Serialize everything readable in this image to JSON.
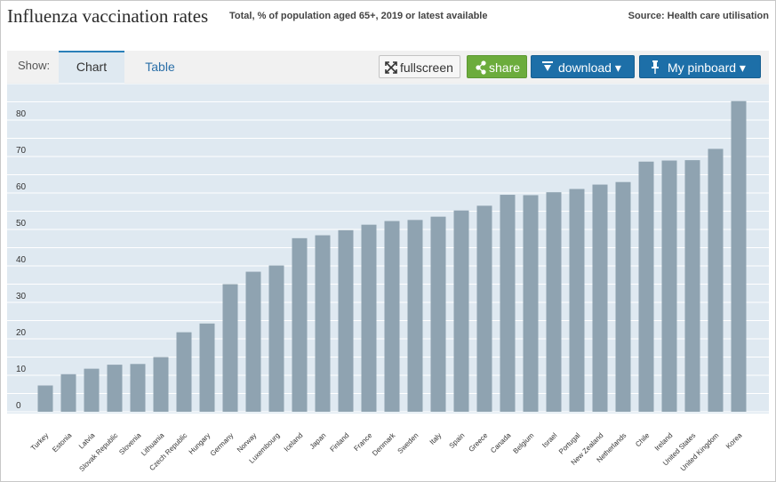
{
  "header": {
    "title": "Influenza vaccination rates",
    "subtitle": "Total, % of population aged 65+, 2019 or latest available",
    "source": "Source: Health care utilisation"
  },
  "toolbar": {
    "show_label": "Show:",
    "tabs": [
      {
        "label": "Chart",
        "active": true
      },
      {
        "label": "Table",
        "active": false
      }
    ],
    "fullscreen_label": "fullscreen",
    "share_label": "share",
    "download_label": "download ▾",
    "pinboard_label": "My pinboard ▾",
    "colors": {
      "share": "#6cac3c",
      "download": "#1d6fa8",
      "pinboard": "#1d6fa8"
    },
    "icons": {
      "fullscreen": "fullscreen-icon",
      "share": "share-icon",
      "download": "download-icon",
      "pinboard": "pin-icon"
    }
  },
  "chart_data": {
    "type": "bar",
    "title": "Influenza vaccination rates",
    "ylim": [
      0,
      90
    ],
    "yticks": [
      0,
      10,
      20,
      30,
      40,
      50,
      60,
      70,
      80
    ],
    "grid": true,
    "bar_color": "#8fa3b1",
    "plot_bg": "#dfe9f1",
    "categories": [
      "Turkey",
      "Estonia",
      "Latvia",
      "Slovak Republic",
      "Slovenia",
      "Lithuania",
      "Czech Republic",
      "Hungary",
      "Germany",
      "Norway",
      "Luxembourg",
      "Iceland",
      "Japan",
      "Finland",
      "France",
      "Denmark",
      "Sweden",
      "Italy",
      "Spain",
      "Greece",
      "Canada",
      "Belgium",
      "Israel",
      "Portugal",
      "New Zealand",
      "Netherlands",
      "Chile",
      "Ireland",
      "United States",
      "United Kingdom",
      "Korea"
    ],
    "values": [
      7.2,
      10.3,
      11.8,
      12.9,
      13.1,
      15.0,
      21.8,
      24.2,
      35.0,
      38.4,
      40.1,
      47.6,
      48.4,
      49.8,
      51.3,
      52.3,
      52.6,
      53.5,
      55.2,
      56.5,
      59.5,
      59.4,
      60.2,
      61.1,
      62.3,
      63.0,
      68.6,
      68.9,
      69.0,
      72.1,
      85.2
    ]
  }
}
